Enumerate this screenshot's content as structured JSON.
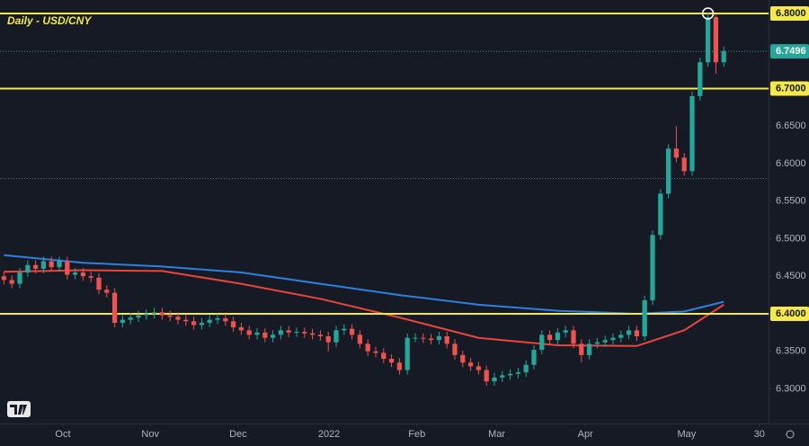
{
  "chart_data": {
    "type": "candlestick",
    "title": "Daily - USD/CNY",
    "x": [
      0,
      1,
      2,
      3,
      4,
      5,
      6,
      7,
      8,
      9,
      10,
      11,
      12,
      13,
      14,
      15,
      16,
      17,
      18,
      19,
      20,
      21,
      22,
      23,
      24,
      25,
      26,
      27,
      28,
      29,
      30,
      31,
      32,
      33,
      34,
      35,
      36,
      37,
      38,
      39,
      40,
      41,
      42,
      43,
      44,
      45,
      46,
      47,
      48,
      49,
      50,
      51,
      52,
      53,
      54,
      55,
      56,
      57,
      58,
      59,
      60,
      61,
      62,
      63,
      64,
      65,
      66,
      67,
      68,
      69,
      70,
      71,
      72,
      73,
      74,
      75,
      76,
      77,
      78,
      79,
      80,
      81,
      82,
      83,
      84,
      85,
      86,
      87,
      88,
      89,
      90,
      91
    ],
    "open": [
      6.45,
      6.445,
      6.44,
      6.455,
      6.465,
      6.46,
      6.47,
      6.462,
      6.47,
      6.452,
      6.455,
      6.45,
      6.448,
      6.432,
      6.428,
      6.388,
      6.392,
      6.395,
      6.398,
      6.4,
      6.402,
      6.398,
      6.396,
      6.392,
      6.39,
      6.385,
      6.388,
      6.392,
      6.394,
      6.39,
      6.382,
      6.378,
      6.372,
      6.375,
      6.368,
      6.372,
      6.378,
      6.375,
      6.376,
      6.374,
      6.372,
      6.37,
      6.362,
      6.378,
      6.38,
      6.372,
      6.36,
      6.35,
      6.348,
      6.34,
      6.335,
      6.325,
      6.368,
      6.368,
      6.367,
      6.365,
      6.37,
      6.36,
      6.345,
      6.335,
      6.33,
      6.325,
      6.31,
      6.315,
      6.318,
      6.32,
      6.322,
      6.332,
      6.352,
      6.372,
      6.365,
      6.375,
      6.378,
      6.36,
      6.345,
      6.36,
      6.362,
      6.365,
      6.368,
      6.372,
      6.378,
      6.37,
      6.418,
      6.505,
      6.56,
      6.62,
      6.608,
      6.59,
      6.69,
      6.735,
      6.795,
      6.735
    ],
    "high": [
      6.456,
      6.451,
      6.461,
      6.471,
      6.471,
      6.476,
      6.476,
      6.476,
      6.476,
      6.461,
      6.461,
      6.456,
      6.454,
      6.438,
      6.434,
      6.398,
      6.401,
      6.404,
      6.406,
      6.408,
      6.408,
      6.404,
      6.402,
      6.398,
      6.396,
      6.394,
      6.398,
      6.4,
      6.4,
      6.396,
      6.388,
      6.384,
      6.381,
      6.381,
      6.378,
      6.384,
      6.384,
      6.382,
      6.382,
      6.38,
      6.378,
      6.376,
      6.384,
      6.386,
      6.386,
      6.378,
      6.366,
      6.356,
      6.354,
      6.346,
      6.341,
      6.374,
      6.374,
      6.374,
      6.373,
      6.376,
      6.376,
      6.366,
      6.351,
      6.341,
      6.336,
      6.331,
      6.321,
      6.324,
      6.326,
      6.328,
      6.338,
      6.358,
      6.378,
      6.378,
      6.381,
      6.384,
      6.384,
      6.366,
      6.366,
      6.368,
      6.371,
      6.374,
      6.378,
      6.384,
      6.384,
      6.424,
      6.511,
      6.566,
      6.626,
      6.65,
      6.614,
      6.696,
      6.741,
      6.8,
      6.798,
      6.756
    ],
    "low": [
      6.439,
      6.434,
      6.434,
      6.449,
      6.454,
      6.454,
      6.456,
      6.456,
      6.446,
      6.446,
      6.444,
      6.442,
      6.426,
      6.422,
      6.382,
      6.382,
      6.386,
      6.389,
      6.392,
      6.394,
      6.392,
      6.39,
      6.386,
      6.384,
      6.379,
      6.379,
      6.382,
      6.386,
      6.384,
      6.376,
      6.372,
      6.366,
      6.366,
      6.362,
      6.362,
      6.366,
      6.369,
      6.369,
      6.368,
      6.366,
      6.364,
      6.35,
      6.356,
      6.372,
      6.366,
      6.354,
      6.344,
      6.342,
      6.334,
      6.329,
      6.319,
      6.319,
      6.362,
      6.361,
      6.359,
      6.359,
      6.354,
      6.339,
      6.329,
      6.324,
      6.319,
      6.304,
      6.304,
      6.309,
      6.312,
      6.314,
      6.316,
      6.326,
      6.346,
      6.359,
      6.359,
      6.369,
      6.354,
      6.335,
      6.339,
      6.354,
      6.356,
      6.359,
      6.362,
      6.366,
      6.364,
      6.364,
      6.412,
      6.499,
      6.554,
      6.602,
      6.584,
      6.584,
      6.684,
      6.729,
      6.72,
      6.729
    ],
    "close": [
      6.445,
      6.44,
      6.455,
      6.465,
      6.46,
      6.47,
      6.462,
      6.47,
      6.452,
      6.455,
      6.45,
      6.448,
      6.432,
      6.428,
      6.388,
      6.392,
      6.395,
      6.398,
      6.4,
      6.402,
      6.398,
      6.396,
      6.392,
      6.39,
      6.385,
      6.388,
      6.392,
      6.394,
      6.39,
      6.382,
      6.378,
      6.372,
      6.375,
      6.368,
      6.372,
      6.378,
      6.375,
      6.376,
      6.374,
      6.372,
      6.37,
      6.362,
      6.378,
      6.38,
      6.372,
      6.36,
      6.35,
      6.348,
      6.34,
      6.335,
      6.325,
      6.368,
      6.368,
      6.367,
      6.365,
      6.37,
      6.36,
      6.345,
      6.335,
      6.33,
      6.325,
      6.31,
      6.315,
      6.318,
      6.32,
      6.322,
      6.332,
      6.352,
      6.372,
      6.365,
      6.375,
      6.378,
      6.36,
      6.345,
      6.36,
      6.362,
      6.365,
      6.368,
      6.372,
      6.378,
      6.37,
      6.418,
      6.505,
      6.56,
      6.62,
      6.608,
      6.59,
      6.69,
      6.735,
      6.795,
      6.735,
      6.75
    ],
    "up_color": "#26a69a",
    "down_color": "#ef5350",
    "lines": [
      {
        "color": "#2f7fe0",
        "x": [
          0,
          10,
          20,
          30,
          40,
          50,
          60,
          70,
          80,
          86,
          91
        ],
        "values": [
          6.478,
          6.468,
          6.463,
          6.455,
          6.44,
          6.425,
          6.412,
          6.404,
          6.4,
          6.403,
          6.416
        ]
      },
      {
        "color": "#e8453c",
        "x": [
          0,
          10,
          20,
          30,
          40,
          50,
          60,
          70,
          80,
          86,
          91
        ],
        "values": [
          6.456,
          6.458,
          6.457,
          6.44,
          6.42,
          6.395,
          6.368,
          6.358,
          6.357,
          6.378,
          6.412
        ]
      }
    ],
    "levels": [
      6.8,
      6.7,
      6.4
    ],
    "level_color": "#f5e94a",
    "last_price": 6.7496,
    "last_price_color": "#26a69a",
    "crosshair_y": 6.58,
    "marker": {
      "x": 89,
      "y": 6.8
    },
    "xlim": [
      -0.5,
      96.66
    ],
    "ylim": [
      6.255,
      6.818
    ],
    "xticks": [
      {
        "value": 7.45,
        "label": "Oct"
      },
      {
        "value": 18.5,
        "label": "Nov"
      },
      {
        "value": 29.6,
        "label": "Dec"
      },
      {
        "value": 41.1,
        "label": "2022"
      },
      {
        "value": 52.2,
        "label": "Feb"
      },
      {
        "value": 62.3,
        "label": "Mar"
      },
      {
        "value": 73.5,
        "label": "Apr"
      },
      {
        "value": 86.3,
        "label": "May"
      },
      {
        "value": 95.5,
        "label": "30"
      }
    ],
    "yticks": [
      {
        "value": 6.3,
        "label": "6.3000"
      },
      {
        "value": 6.35,
        "label": "6.3500"
      },
      {
        "value": 6.4,
        "label": "6.4000"
      },
      {
        "value": 6.45,
        "label": "6.4500"
      },
      {
        "value": 6.5,
        "label": "6.5000"
      },
      {
        "value": 6.55,
        "label": "6.5500"
      },
      {
        "value": 6.6,
        "label": "6.6000"
      },
      {
        "value": 6.65,
        "label": "6.6500"
      },
      {
        "value": 6.7,
        "label": "6.7000"
      },
      {
        "value": 6.75,
        "label": "6.7500"
      },
      {
        "value": 6.8,
        "label": "6.8000"
      }
    ]
  }
}
